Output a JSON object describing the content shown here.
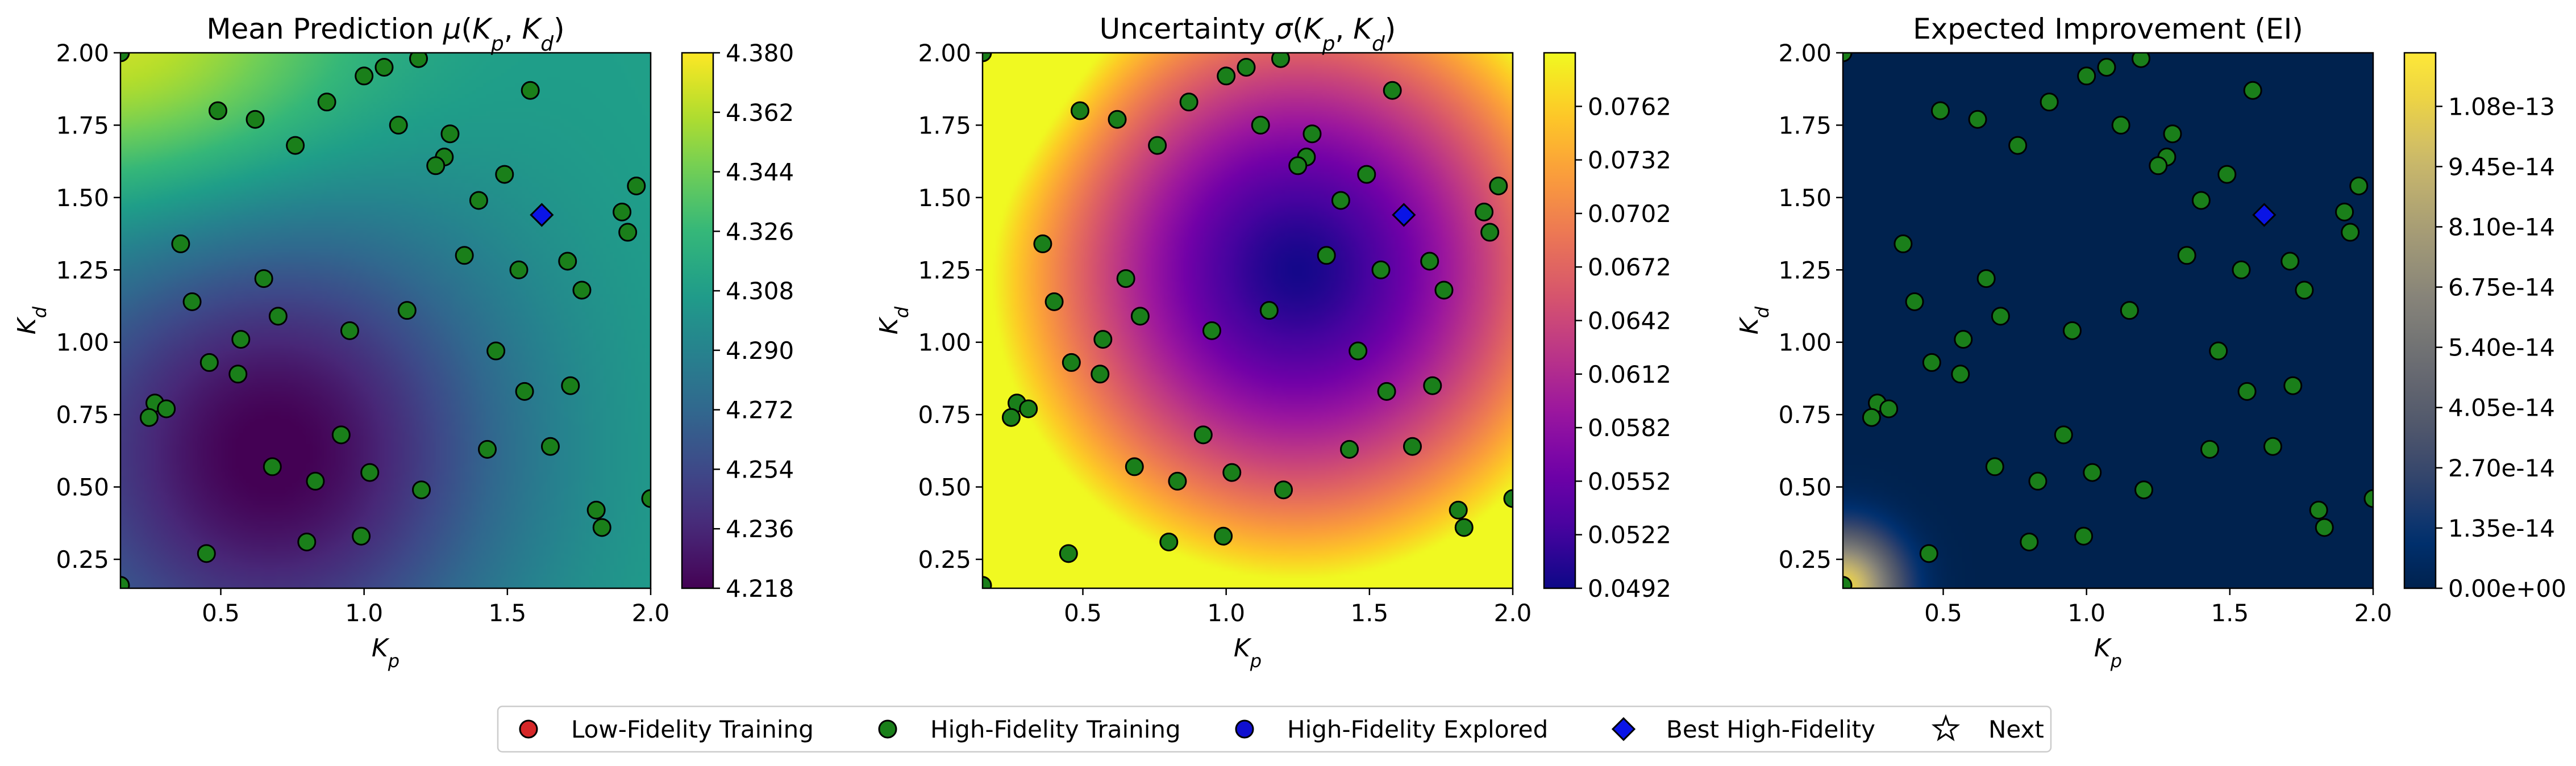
{
  "chart_data": [
    {
      "type": "heatmap",
      "title": "Mean Prediction μ(Kp,Kd)",
      "title_text": "Mean Prediction ",
      "title_symbol": "μ",
      "xlabel": "Kp",
      "ylabel": "Kd",
      "xlim": [
        0.15,
        2.0
      ],
      "ylim": [
        0.15,
        2.0
      ],
      "xticks": [
        "0.5",
        "1.0",
        "1.5",
        "2.0"
      ],
      "yticks": [
        "0.25",
        "0.50",
        "0.75",
        "1.00",
        "1.25",
        "1.50",
        "1.75",
        "2.00"
      ],
      "colormap": "viridis",
      "colorbar_range": [
        4.218,
        4.38
      ],
      "colorbar_ticks": [
        "4.218",
        "4.236",
        "4.254",
        "4.272",
        "4.290",
        "4.308",
        "4.326",
        "4.344",
        "4.362",
        "4.380"
      ]
    },
    {
      "type": "heatmap",
      "title": "Uncertainty σ(Kp,Kd)",
      "title_text": "Uncertainty ",
      "title_symbol": "σ",
      "xlabel": "Kp",
      "ylabel": "Kd",
      "xlim": [
        0.15,
        2.0
      ],
      "ylim": [
        0.15,
        2.0
      ],
      "xticks": [
        "0.5",
        "1.0",
        "1.5",
        "2.0"
      ],
      "yticks": [
        "0.25",
        "0.50",
        "0.75",
        "1.00",
        "1.25",
        "1.50",
        "1.75",
        "2.00"
      ],
      "colormap": "plasma",
      "colorbar_range": [
        0.0492,
        0.0792
      ],
      "colorbar_ticks": [
        "0.0492",
        "0.0522",
        "0.0552",
        "0.0582",
        "0.0612",
        "0.0642",
        "0.0672",
        "0.0702",
        "0.0732",
        "0.0762"
      ]
    },
    {
      "type": "heatmap",
      "title": "Expected Improvement (EI)",
      "title_text": "Expected Improvement (EI)",
      "title_symbol": "",
      "xlabel": "Kp",
      "ylabel": "Kd",
      "xlim": [
        0.15,
        2.0
      ],
      "ylim": [
        0.15,
        2.0
      ],
      "xticks": [
        "0.5",
        "1.0",
        "1.5",
        "2.0"
      ],
      "yticks": [
        "0.25",
        "0.50",
        "0.75",
        "1.00",
        "1.25",
        "1.50",
        "1.75",
        "2.00"
      ],
      "colormap": "cividis",
      "colorbar_range": [
        0,
        1.2e-13
      ],
      "colorbar_ticks": [
        "0.00e+00",
        "1.35e-14",
        "2.70e-14",
        "4.05e-14",
        "5.40e-14",
        "6.75e-14",
        "8.10e-14",
        "9.45e-14",
        "1.08e-13"
      ]
    }
  ],
  "colorbar_values": [
    [
      4.218,
      4.236,
      4.254,
      4.272,
      4.29,
      4.308,
      4.326,
      4.344,
      4.362,
      4.38
    ],
    [
      0.0492,
      0.0522,
      0.0552,
      0.0582,
      0.0612,
      0.0642,
      0.0672,
      0.0702,
      0.0732,
      0.0762
    ],
    [
      0,
      1.35e-14,
      2.7e-14,
      4.05e-14,
      5.4e-14,
      6.75e-14,
      8.1e-14,
      9.45e-14,
      1.08e-13
    ]
  ],
  "points": {
    "high_fidelity_training": [
      [
        0.49,
        1.8
      ],
      [
        0.62,
        1.77
      ],
      [
        0.76,
        1.68
      ],
      [
        0.87,
        1.83
      ],
      [
        1.0,
        1.92
      ],
      [
        1.07,
        1.95
      ],
      [
        1.19,
        1.98
      ],
      [
        1.12,
        1.75
      ],
      [
        1.3,
        1.72
      ],
      [
        1.28,
        1.64
      ],
      [
        1.25,
        1.61
      ],
      [
        1.49,
        1.58
      ],
      [
        1.58,
        1.87
      ],
      [
        1.4,
        1.49
      ],
      [
        1.95,
        1.54
      ],
      [
        1.9,
        1.45
      ],
      [
        1.92,
        1.38
      ],
      [
        0.36,
        1.34
      ],
      [
        1.35,
        1.3
      ],
      [
        1.71,
        1.28
      ],
      [
        1.54,
        1.25
      ],
      [
        0.65,
        1.22
      ],
      [
        1.76,
        1.18
      ],
      [
        0.4,
        1.14
      ],
      [
        1.15,
        1.11
      ],
      [
        0.7,
        1.09
      ],
      [
        0.95,
        1.04
      ],
      [
        0.57,
        1.01
      ],
      [
        1.46,
        0.97
      ],
      [
        0.46,
        0.93
      ],
      [
        0.56,
        0.89
      ],
      [
        1.72,
        0.85
      ],
      [
        1.56,
        0.83
      ],
      [
        0.27,
        0.79
      ],
      [
        0.31,
        0.77
      ],
      [
        0.25,
        0.74
      ],
      [
        0.92,
        0.68
      ],
      [
        1.65,
        0.64
      ],
      [
        1.43,
        0.63
      ],
      [
        0.68,
        0.57
      ],
      [
        1.02,
        0.55
      ],
      [
        0.83,
        0.52
      ],
      [
        1.2,
        0.49
      ],
      [
        2.0,
        0.46
      ],
      [
        1.81,
        0.42
      ],
      [
        1.83,
        0.36
      ],
      [
        0.99,
        0.33
      ],
      [
        0.8,
        0.31
      ],
      [
        0.45,
        0.27
      ],
      [
        0.15,
        0.16
      ],
      [
        0.15,
        2.0
      ]
    ],
    "best_high_fidelity": [
      1.62,
      1.44
    ]
  },
  "legend": [
    {
      "label": "Low-Fidelity Training",
      "marker": "circle",
      "color": "#d62728"
    },
    {
      "label": "High-Fidelity Training",
      "marker": "circle",
      "color": "#1a7f1a"
    },
    {
      "label": "High-Fidelity Explored",
      "marker": "circle",
      "color": "#1010d0"
    },
    {
      "label": "Best High-Fidelity",
      "marker": "diamond",
      "color": "#0a14e6"
    },
    {
      "label": "Next",
      "marker": "star",
      "color": "#ffffff"
    }
  ]
}
